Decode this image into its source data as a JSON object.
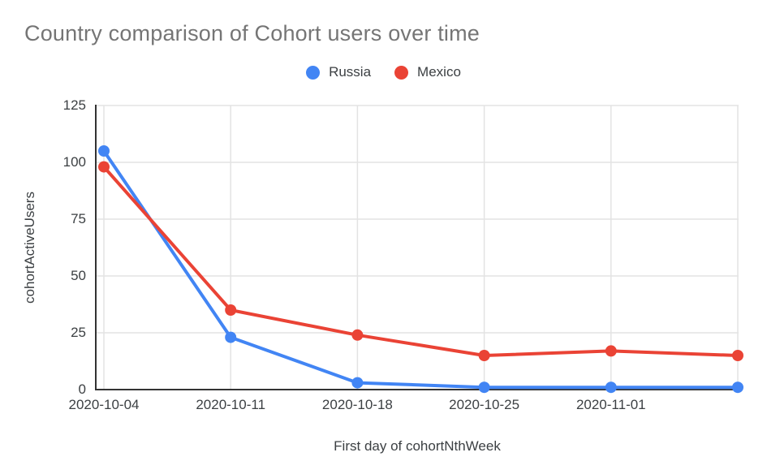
{
  "chart_data": {
    "type": "line",
    "title": "Country comparison of Cohort users over time",
    "xlabel": "First day of cohortNthWeek",
    "ylabel": "cohortActiveUsers",
    "categories": [
      "2020-10-04",
      "2020-10-11",
      "2020-10-18",
      "2020-10-25",
      "2020-11-01",
      ""
    ],
    "series": [
      {
        "name": "Russia",
        "color": "#4285F4",
        "values": [
          105,
          23,
          3,
          1,
          1,
          1
        ]
      },
      {
        "name": "Mexico",
        "color": "#EA4335",
        "values": [
          98,
          35,
          24,
          15,
          17,
          15
        ]
      }
    ],
    "ylim": [
      0,
      125
    ],
    "yticks": [
      0,
      25,
      50,
      75,
      100,
      125
    ],
    "grid": true,
    "legend_position": "top",
    "marker": "circle"
  },
  "style": {
    "title_color": "#757575",
    "tick_label_color": "#3c4043",
    "axis_title_color": "#3c4043",
    "grid_color": "#e3e3e3",
    "axis_line_color": "#333333",
    "background": "#ffffff"
  }
}
